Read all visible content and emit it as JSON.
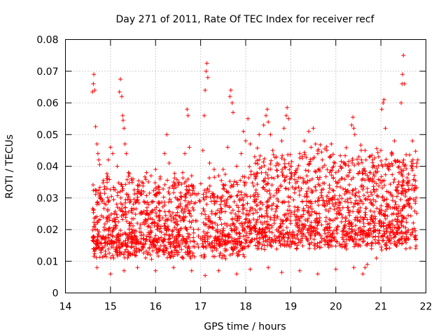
{
  "chart_data": {
    "type": "scatter",
    "title": "Day 271 of 2011, Rate Of TEC Index for receiver recf",
    "xlabel": "GPS time / hours",
    "ylabel": "ROTI / TECUs",
    "xlim": [
      14,
      22
    ],
    "ylim": [
      0,
      0.08
    ],
    "xticks": [
      14,
      15,
      16,
      17,
      18,
      19,
      20,
      21,
      22
    ],
    "xtick_labels": [
      "14",
      "15",
      "16",
      "17",
      "18",
      "19",
      "20",
      "21",
      "22"
    ],
    "yticks": [
      0,
      0.01,
      0.02,
      0.03,
      0.04,
      0.05,
      0.06,
      0.07,
      0.08
    ],
    "ytick_labels": [
      "0",
      "0.01",
      "0.02",
      "0.03",
      "0.04",
      "0.05",
      "0.06",
      "0.07",
      "0.08"
    ],
    "grid": true,
    "marker": "+",
    "color": "#ff0000",
    "series": [
      {
        "name": "ROTI",
        "points": [
          [
            14.6,
            0.0635
          ],
          [
            14.62,
            0.066
          ],
          [
            14.63,
            0.069
          ],
          [
            14.65,
            0.064
          ],
          [
            14.67,
            0.0525
          ],
          [
            14.7,
            0.047
          ],
          [
            14.72,
            0.044
          ],
          [
            14.74,
            0.042
          ],
          [
            14.76,
            0.0405
          ],
          [
            14.95,
            0.042
          ],
          [
            15.0,
            0.046
          ],
          [
            15.05,
            0.044
          ],
          [
            15.15,
            0.04
          ],
          [
            15.2,
            0.0635
          ],
          [
            15.22,
            0.0675
          ],
          [
            15.25,
            0.062
          ],
          [
            15.27,
            0.056
          ],
          [
            15.28,
            0.0545
          ],
          [
            15.3,
            0.052
          ],
          [
            15.32,
            0.047
          ],
          [
            15.35,
            0.044
          ],
          [
            15.4,
            0.038
          ],
          [
            15.5,
            0.036
          ],
          [
            15.6,
            0.034
          ],
          [
            15.7,
            0.035
          ],
          [
            15.8,
            0.038
          ],
          [
            15.9,
            0.037
          ],
          [
            16.0,
            0.039
          ],
          [
            16.1,
            0.036
          ],
          [
            16.2,
            0.044
          ],
          [
            16.25,
            0.05
          ],
          [
            16.3,
            0.041
          ],
          [
            16.4,
            0.035
          ],
          [
            16.5,
            0.034
          ],
          [
            16.6,
            0.038
          ],
          [
            16.65,
            0.044
          ],
          [
            16.7,
            0.058
          ],
          [
            16.72,
            0.056
          ],
          [
            16.75,
            0.046
          ],
          [
            16.8,
            0.037
          ],
          [
            16.9,
            0.031
          ],
          [
            17.05,
            0.045
          ],
          [
            17.08,
            0.056
          ],
          [
            17.1,
            0.064
          ],
          [
            17.12,
            0.07
          ],
          [
            17.14,
            0.0725
          ],
          [
            17.16,
            0.068
          ],
          [
            17.2,
            0.041
          ],
          [
            17.3,
            0.039
          ],
          [
            17.4,
            0.037
          ],
          [
            17.5,
            0.039
          ],
          [
            17.6,
            0.046
          ],
          [
            17.65,
            0.062
          ],
          [
            17.67,
            0.064
          ],
          [
            17.7,
            0.06
          ],
          [
            17.72,
            0.057
          ],
          [
            17.8,
            0.04
          ],
          [
            17.9,
            0.044
          ],
          [
            17.95,
            0.051
          ],
          [
            18.0,
            0.048
          ],
          [
            18.05,
            0.055
          ],
          [
            18.1,
            0.047
          ],
          [
            18.2,
            0.043
          ],
          [
            18.3,
            0.05
          ],
          [
            18.4,
            0.053
          ],
          [
            18.45,
            0.056
          ],
          [
            18.48,
            0.058
          ],
          [
            18.5,
            0.054
          ],
          [
            18.55,
            0.05
          ],
          [
            18.6,
            0.045
          ],
          [
            18.7,
            0.041
          ],
          [
            18.8,
            0.048
          ],
          [
            18.85,
            0.052
          ],
          [
            18.9,
            0.056
          ],
          [
            18.92,
            0.0585
          ],
          [
            18.95,
            0.055
          ],
          [
            19.0,
            0.04
          ],
          [
            19.1,
            0.038
          ],
          [
            19.2,
            0.044
          ],
          [
            19.3,
            0.048
          ],
          [
            19.4,
            0.051
          ],
          [
            19.45,
            0.046
          ],
          [
            19.5,
            0.052
          ],
          [
            19.55,
            0.047
          ],
          [
            19.6,
            0.044
          ],
          [
            19.7,
            0.042
          ],
          [
            19.8,
            0.045
          ],
          [
            19.9,
            0.047
          ],
          [
            19.95,
            0.04
          ],
          [
            20.0,
            0.038
          ],
          [
            20.1,
            0.04
          ],
          [
            20.2,
            0.041
          ],
          [
            20.3,
            0.038
          ],
          [
            20.35,
            0.053
          ],
          [
            20.38,
            0.0555
          ],
          [
            20.4,
            0.052
          ],
          [
            20.42,
            0.05
          ],
          [
            20.5,
            0.041
          ],
          [
            20.6,
            0.036
          ],
          [
            20.65,
            0.045
          ],
          [
            20.7,
            0.033
          ],
          [
            20.8,
            0.031
          ],
          [
            20.9,
            0.038
          ],
          [
            20.95,
            0.043
          ],
          [
            21.0,
            0.045
          ],
          [
            21.02,
            0.058
          ],
          [
            21.05,
            0.06
          ],
          [
            21.07,
            0.061
          ],
          [
            21.1,
            0.052
          ],
          [
            21.2,
            0.04
          ],
          [
            21.25,
            0.044
          ],
          [
            21.3,
            0.048
          ],
          [
            21.4,
            0.038
          ],
          [
            21.45,
            0.06
          ],
          [
            21.47,
            0.066
          ],
          [
            21.48,
            0.069
          ],
          [
            21.5,
            0.075
          ],
          [
            21.52,
            0.066
          ],
          [
            21.6,
            0.035
          ],
          [
            21.7,
            0.048
          ],
          [
            21.75,
            0.033
          ],
          [
            21.76,
            0.029
          ],
          [
            21.78,
            0.03
          ],
          [
            21.8,
            0.041
          ],
          [
            21.82,
            0.042
          ],
          [
            14.7,
            0.008
          ],
          [
            15.0,
            0.006
          ],
          [
            15.3,
            0.007
          ],
          [
            15.6,
            0.008
          ],
          [
            16.0,
            0.007
          ],
          [
            16.4,
            0.008
          ],
          [
            16.8,
            0.007
          ],
          [
            17.1,
            0.0055
          ],
          [
            17.4,
            0.007
          ],
          [
            17.8,
            0.006
          ],
          [
            18.1,
            0.0075
          ],
          [
            18.5,
            0.008
          ],
          [
            18.8,
            0.0065
          ],
          [
            19.2,
            0.007
          ],
          [
            19.6,
            0.006
          ],
          [
            20.0,
            0.0075
          ],
          [
            20.4,
            0.008
          ],
          [
            20.6,
            0.006
          ],
          [
            20.65,
            0.008
          ],
          [
            20.7,
            0.009
          ],
          [
            20.9,
            0.011
          ],
          [
            21.0,
            0.021
          ]
        ]
      }
    ],
    "dense_cloud": {
      "description": "Dense band of ROTI values between approx 0.008 and 0.035 spanning GPS time 14.6 to 21.8 hours",
      "x_range": [
        14.6,
        21.8
      ],
      "y_range": [
        0.005,
        0.035
      ]
    }
  }
}
